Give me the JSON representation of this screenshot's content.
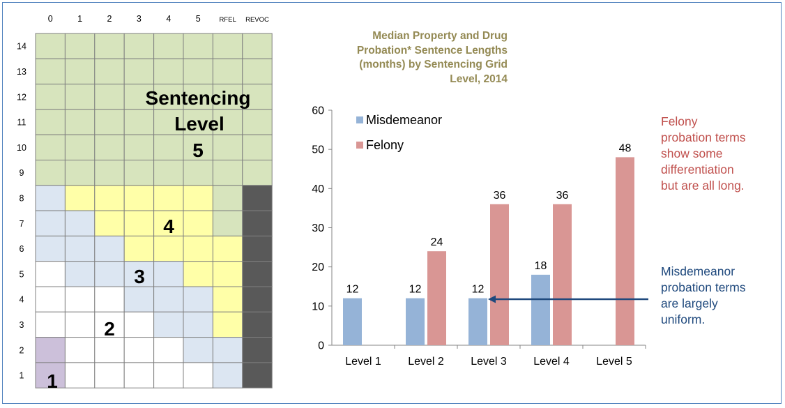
{
  "grid": {
    "column_labels": [
      "0",
      "1",
      "2",
      "3",
      "4",
      "5",
      "RFEL",
      "REVOC"
    ],
    "row_labels": [
      "14",
      "13",
      "12",
      "11",
      "10",
      "9",
      "8",
      "7",
      "6",
      "5",
      "4",
      "3",
      "2",
      "1"
    ],
    "cell_colors": {
      "level1": "#ccc0da",
      "level2": "#ffffff",
      "level3": "#dce6f2",
      "level4": "#ffffa8",
      "level5": "#d7e4bd",
      "revoc": "#595959"
    },
    "cells": [
      [
        5,
        5,
        5,
        5,
        5,
        5,
        5,
        5
      ],
      [
        5,
        5,
        5,
        5,
        5,
        5,
        5,
        5
      ],
      [
        5,
        5,
        5,
        5,
        5,
        5,
        5,
        5
      ],
      [
        5,
        5,
        5,
        5,
        5,
        5,
        5,
        5
      ],
      [
        5,
        5,
        5,
        5,
        5,
        5,
        5,
        5
      ],
      [
        5,
        5,
        5,
        5,
        5,
        5,
        5,
        5
      ],
      [
        3,
        4,
        4,
        4,
        4,
        4,
        5,
        "r"
      ],
      [
        3,
        3,
        4,
        4,
        4,
        4,
        5,
        "r"
      ],
      [
        3,
        3,
        3,
        4,
        4,
        4,
        4,
        "r"
      ],
      [
        2,
        3,
        3,
        3,
        3,
        4,
        4,
        "r"
      ],
      [
        2,
        2,
        2,
        3,
        3,
        3,
        4,
        "r"
      ],
      [
        2,
        2,
        2,
        2,
        3,
        3,
        4,
        "r"
      ],
      [
        1,
        2,
        2,
        2,
        2,
        3,
        3,
        "r"
      ],
      [
        1,
        2,
        2,
        2,
        2,
        2,
        3,
        "r"
      ]
    ],
    "level_labels": {
      "l1": "1",
      "l2": "2",
      "l3": "3",
      "l4": "4",
      "l5_line1": "Sentencing",
      "l5_line2": "Level",
      "l5_line3": "5"
    }
  },
  "chart_data": {
    "type": "bar",
    "title_lines": [
      "Median Property and Drug",
      "Probation* Sentence Lengths",
      "(months) by Sentencing Grid",
      "Level, 2014"
    ],
    "categories": [
      "Level 1",
      "Level 2",
      "Level 3",
      "Level 4",
      "Level 5"
    ],
    "series": [
      {
        "name": "Misdemeanor",
        "color": "#95b3d7",
        "values": [
          12,
          12,
          12,
          18,
          null
        ],
        "labels": [
          "12",
          "12",
          "12",
          "18",
          ""
        ]
      },
      {
        "name": "Felony",
        "color": "#d99694",
        "values": [
          null,
          24,
          36,
          36,
          48
        ],
        "labels": [
          "",
          "24",
          "36",
          "36",
          "48"
        ]
      }
    ],
    "ylim": [
      0,
      60
    ],
    "yticks": [
      "0",
      "10",
      "20",
      "30",
      "40",
      "50",
      "60"
    ],
    "grid": false,
    "legend_position": "top-left"
  },
  "annotations": {
    "felony_lines": [
      "Felony",
      "probation terms",
      "show some",
      "differentiation",
      "but are all long."
    ],
    "felony_color": "#c0504d",
    "misdemeanor_lines": [
      "Misdemeanor",
      "probation terms",
      "are largely",
      "uniform."
    ],
    "misdemeanor_color": "#1f497d"
  }
}
